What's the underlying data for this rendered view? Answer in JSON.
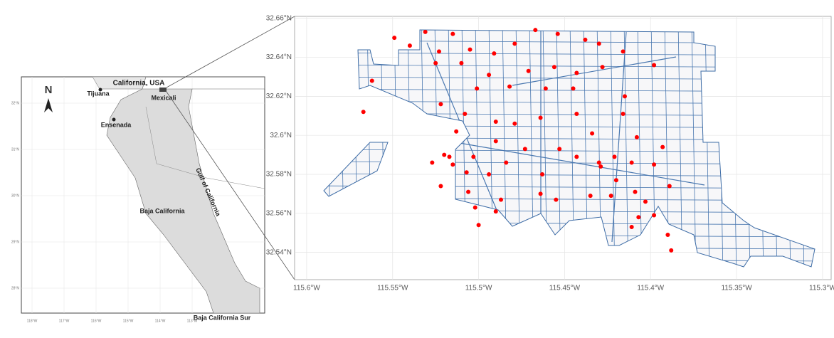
{
  "chart_data": {
    "type": "scatter",
    "color": "#ff0000",
    "grid": true,
    "xlim": [
      -115.607,
      -115.295
    ],
    "ylim": [
      32.526,
      32.661
    ],
    "xticks": [
      {
        "value": -115.6,
        "label": "115.6°W"
      },
      {
        "value": -115.55,
        "label": "115.55°W"
      },
      {
        "value": -115.5,
        "label": "115.5°W"
      },
      {
        "value": -115.45,
        "label": "115.45°W"
      },
      {
        "value": -115.4,
        "label": "115.4°W"
      },
      {
        "value": -115.35,
        "label": "115.35°W"
      },
      {
        "value": -115.3,
        "label": "115.3°W"
      }
    ],
    "yticks": [
      {
        "value": 32.54,
        "label": "32.54°N"
      },
      {
        "value": 32.56,
        "label": "32.56°N"
      },
      {
        "value": 32.58,
        "label": "32.58°N"
      },
      {
        "value": 32.6,
        "label": "32.6°N"
      },
      {
        "value": 32.62,
        "label": "32.62°N"
      },
      {
        "value": 32.64,
        "label": "32.64°N"
      },
      {
        "value": 32.66,
        "label": "32.66°N"
      }
    ],
    "x": [
      -115.549,
      -115.531,
      -115.515,
      -115.54,
      -115.523,
      -115.505,
      -115.491,
      -115.479,
      -115.467,
      -115.454,
      -115.438,
      -115.43,
      -115.416,
      -115.398,
      -115.562,
      -115.567,
      -115.525,
      -115.51,
      -115.494,
      -115.471,
      -115.456,
      -115.443,
      -115.428,
      -115.522,
      -115.501,
      -115.482,
      -115.461,
      -115.445,
      -115.415,
      -115.416,
      -115.508,
      -115.49,
      -115.479,
      -115.464,
      -115.443,
      -115.434,
      -115.408,
      -115.513,
      -115.49,
      -115.473,
      -115.517,
      -115.503,
      -115.484,
      -115.453,
      -115.443,
      -115.43,
      -115.421,
      -115.411,
      -115.393,
      -115.527,
      -115.507,
      -115.494,
      -115.463,
      -115.429,
      -115.42,
      -115.398,
      -115.522,
      -115.506,
      -115.487,
      -115.464,
      -115.455,
      -115.435,
      -115.423,
      -115.409,
      -115.403,
      -115.502,
      -115.49,
      -115.5,
      -115.407,
      -115.398,
      -115.39,
      -115.388,
      -115.411,
      -115.52,
      -115.515,
      -115.389
    ],
    "y": [
      32.65,
      32.653,
      32.652,
      32.646,
      32.643,
      32.644,
      32.642,
      32.647,
      32.654,
      32.652,
      32.649,
      32.647,
      32.643,
      32.636,
      32.628,
      32.612,
      32.637,
      32.637,
      32.631,
      32.633,
      32.635,
      32.632,
      32.635,
      32.616,
      32.624,
      32.625,
      32.624,
      32.624,
      32.62,
      32.611,
      32.611,
      32.607,
      32.606,
      32.609,
      32.611,
      32.601,
      32.599,
      32.602,
      32.597,
      32.593,
      32.589,
      32.589,
      32.586,
      32.593,
      32.589,
      32.586,
      32.589,
      32.586,
      32.594,
      32.586,
      32.581,
      32.58,
      32.58,
      32.584,
      32.577,
      32.585,
      32.574,
      32.571,
      32.567,
      32.57,
      32.567,
      32.569,
      32.569,
      32.571,
      32.566,
      32.563,
      32.561,
      32.554,
      32.558,
      32.559,
      32.549,
      32.541,
      32.553,
      32.59,
      32.585,
      32.574
    ]
  },
  "inset": {
    "north": "N",
    "labels": [
      "California, USA",
      "Tijuana",
      "Mexicali",
      "Ensenada",
      "Baja California",
      "Gulf of California",
      "Baja California Sur"
    ],
    "lat_ticks": [
      "32°N",
      "31°N",
      "30°N",
      "29°N",
      "28°N"
    ],
    "lon_ticks": [
      "118°W",
      "117°W",
      "116°W",
      "115°W",
      "114°W",
      "113°W"
    ]
  }
}
